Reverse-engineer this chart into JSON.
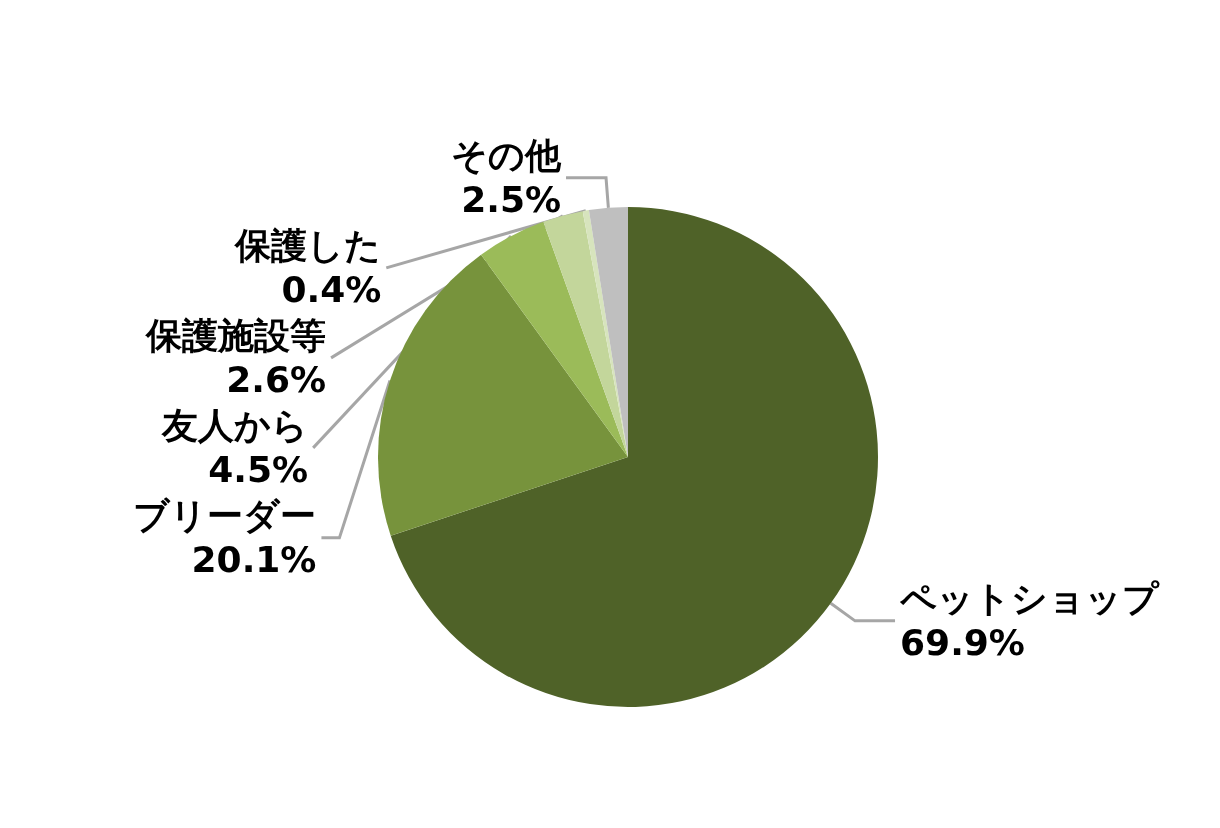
{
  "chart_data": {
    "type": "pie",
    "categories": [
      "ペットショップ",
      "ブリーダー",
      "友人から",
      "保護施設等",
      "保護した",
      "その他"
    ],
    "values": [
      69.9,
      20.1,
      4.5,
      2.6,
      0.4,
      2.5
    ],
    "value_labels": [
      "69.9%",
      "20.1%",
      "4.5%",
      "2.6%",
      "0.4%",
      "2.5%"
    ],
    "colors": [
      "#4f6228",
      "#77933c",
      "#9bbb59",
      "#c3d69b",
      "#d7e4bd",
      "#bfbfbf"
    ]
  }
}
